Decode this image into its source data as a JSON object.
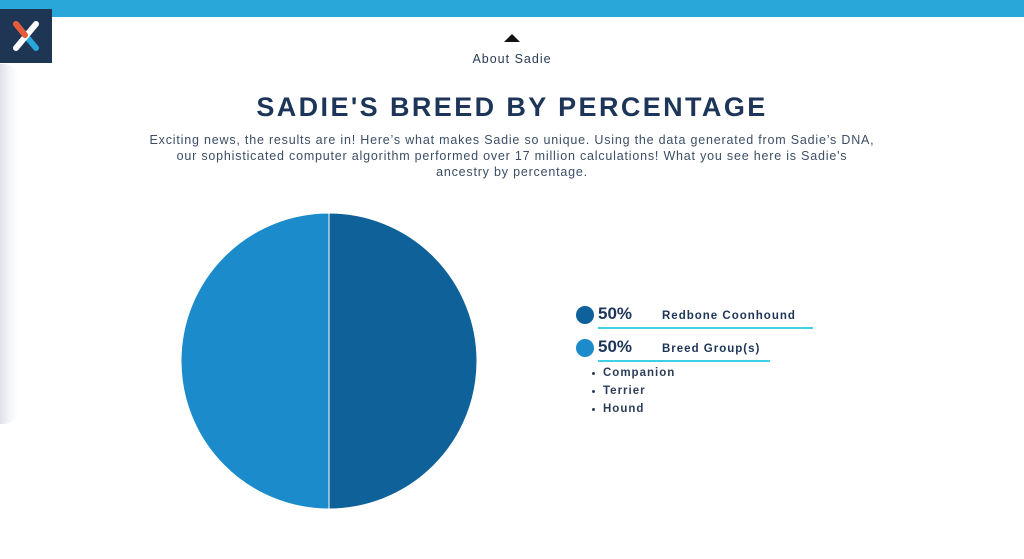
{
  "nav": {
    "label": "About Sadie"
  },
  "title": "SADIE'S BREED BY PERCENTAGE",
  "intro": "Exciting news, the results are in! Here’s what makes Sadie so unique. Using the data generated from Sadie’s DNA, our sophisticated computer algorithm performed over 17 million calculations! What you see here is Sadie's ancestry by percentage.",
  "colors": {
    "brand_top_bar": "#2aa7d9",
    "logo_bg": "#1e3554",
    "series_dark": "#0f6199",
    "series_light": "#1b8bcb",
    "underline": "#3fd0e8"
  },
  "legend": [
    {
      "percent": "50%",
      "label": "Redbone Coonhound",
      "color": "#0f6199"
    },
    {
      "percent": "50%",
      "label": "Breed Group(s)",
      "color": "#1b8bcb"
    }
  ],
  "breed_groups": [
    "Companion",
    "Terrier",
    "Hound"
  ],
  "chart_data": {
    "type": "pie",
    "slices": [
      {
        "name": "Redbone Coonhound",
        "value": 50,
        "color": "#0f6199"
      },
      {
        "name": "Breed Group(s)",
        "value": 50,
        "color": "#1b8bcb"
      }
    ]
  }
}
